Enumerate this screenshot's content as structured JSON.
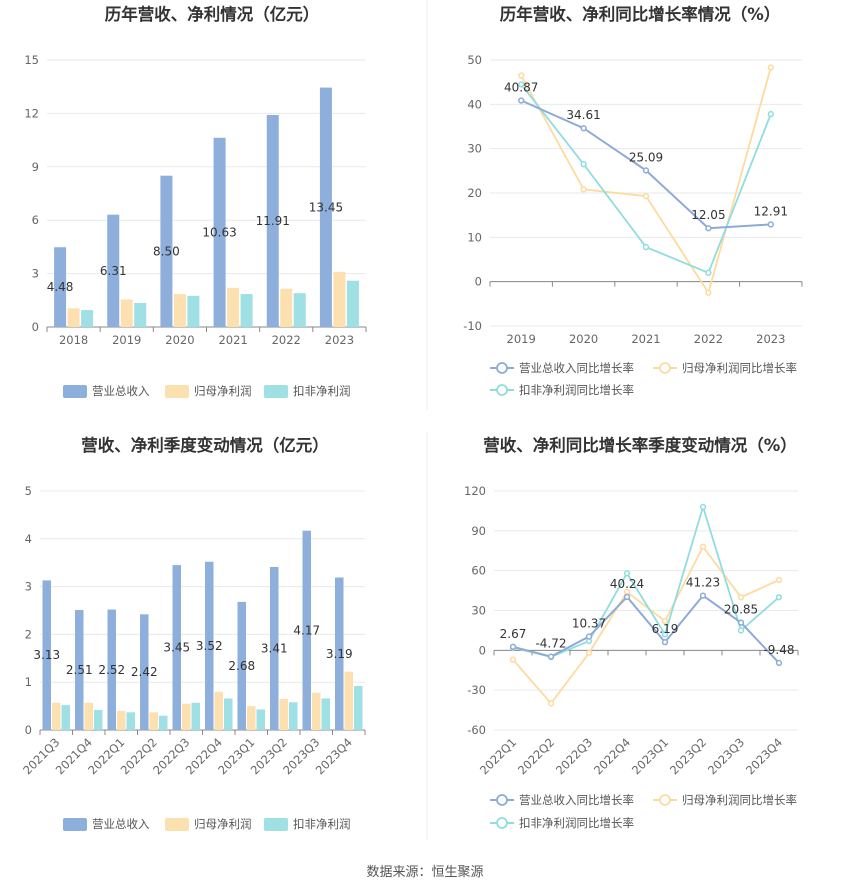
{
  "colors": {
    "revenue": "#8eaedb",
    "profit": "#fde0b0",
    "nonrecur": "#9ee0e4",
    "revenue_line": "#8eaad6",
    "profit_line": "#fddb9e",
    "nonrecur_line": "#8fdde1"
  },
  "source": "数据来源：恒生聚源",
  "chart_data": [
    {
      "id": "annual_amount",
      "type": "bar",
      "title": "历年营收、净利情况（亿元）",
      "categories": [
        "2018",
        "2019",
        "2020",
        "2021",
        "2022",
        "2023"
      ],
      "ylim": [
        0,
        15
      ],
      "yticks": [
        "0",
        "3",
        "6",
        "9",
        "12",
        "15"
      ],
      "yticks_values": [
        0,
        3,
        6,
        9,
        12,
        15
      ],
      "series": [
        {
          "name": "营业总收入",
          "values": [
            4.48,
            6.31,
            8.5,
            10.63,
            11.91,
            13.45
          ],
          "labels": [
            "4.48",
            "6.31",
            "8.50",
            "10.63",
            "11.91",
            "13.45"
          ]
        },
        {
          "name": "归母净利润",
          "values": [
            1.05,
            1.55,
            1.85,
            2.2,
            2.15,
            3.1
          ]
        },
        {
          "name": "扣非净利润",
          "values": [
            0.95,
            1.35,
            1.75,
            1.85,
            1.9,
            2.6
          ]
        }
      ],
      "legend": "bottom"
    },
    {
      "id": "annual_growth",
      "type": "line",
      "title": "历年营收、净利同比增长率情况（%）",
      "categories": [
        "2019",
        "2020",
        "2021",
        "2022",
        "2023"
      ],
      "ylim": [
        -10,
        50
      ],
      "yticks": [
        "-10",
        "0",
        "10",
        "20",
        "30",
        "40",
        "50"
      ],
      "yticks_values": [
        -10,
        0,
        10,
        20,
        30,
        40,
        50
      ],
      "series": [
        {
          "name": "营业总收入同比增长率",
          "values": [
            40.87,
            34.61,
            25.09,
            12.05,
            12.91
          ],
          "labels": [
            "40.87",
            "34.61",
            "25.09",
            "12.05",
            "12.91"
          ]
        },
        {
          "name": "归母净利润同比增长率",
          "values": [
            46.5,
            20.8,
            19.3,
            -2.5,
            48.3
          ]
        },
        {
          "name": "扣非净利润同比增长率",
          "values": [
            44.5,
            26.5,
            7.8,
            2.0,
            37.8
          ]
        }
      ],
      "legend": "bottom"
    },
    {
      "id": "quarter_amount",
      "type": "bar",
      "title": "营收、净利季度变动情况（亿元）",
      "categories": [
        "2021Q3",
        "2021Q4",
        "2022Q1",
        "2022Q2",
        "2022Q3",
        "2022Q4",
        "2023Q1",
        "2023Q2",
        "2023Q3",
        "2023Q4"
      ],
      "ylim": [
        0,
        5
      ],
      "yticks": [
        "0",
        "1",
        "2",
        "3",
        "4",
        "5"
      ],
      "yticks_values": [
        0,
        1,
        2,
        3,
        4,
        5
      ],
      "series": [
        {
          "name": "营业总收入",
          "values": [
            3.13,
            2.51,
            2.52,
            2.42,
            3.45,
            3.52,
            2.68,
            3.41,
            4.17,
            3.19
          ],
          "labels": [
            "3.13",
            "2.51",
            "2.52",
            "2.42",
            "3.45",
            "3.52",
            "2.68",
            "3.41",
            "4.17",
            "3.19"
          ]
        },
        {
          "name": "归母净利润",
          "values": [
            0.57,
            0.57,
            0.4,
            0.37,
            0.55,
            0.8,
            0.5,
            0.65,
            0.78,
            1.22
          ]
        },
        {
          "name": "扣非净利润",
          "values": [
            0.52,
            0.42,
            0.37,
            0.3,
            0.57,
            0.66,
            0.43,
            0.58,
            0.66,
            0.92
          ]
        }
      ],
      "legend": "bottom"
    },
    {
      "id": "quarter_growth",
      "type": "line",
      "title": "营收、净利同比增长率季度变动情况（%）",
      "categories": [
        "2022Q1",
        "2022Q2",
        "2022Q3",
        "2022Q4",
        "2023Q1",
        "2023Q2",
        "2023Q3",
        "2023Q4"
      ],
      "ylim": [
        -60,
        120
      ],
      "yticks": [
        "-60",
        "-30",
        "0",
        "30",
        "60",
        "90",
        "120"
      ],
      "yticks_values": [
        -60,
        -30,
        0,
        30,
        60,
        90,
        120
      ],
      "series": [
        {
          "name": "营业总收入同比增长率",
          "values": [
            2.67,
            -4.72,
            10.37,
            40.24,
            6.19,
            41.23,
            20.85,
            -9.48
          ],
          "labels": [
            "2.67",
            "-4.72",
            "10.37",
            "40.24",
            "6.19",
            "41.23",
            "20.85",
            "-9.48"
          ]
        },
        {
          "name": "归母净利润同比增长率",
          "values": [
            -7,
            -40,
            -2,
            44,
            22,
            78,
            40,
            53
          ]
        },
        {
          "name": "扣非净利润同比增长率",
          "values": [
            2,
            -5,
            7,
            58,
            12,
            108,
            15,
            40
          ]
        }
      ],
      "legend": "bottom"
    }
  ]
}
